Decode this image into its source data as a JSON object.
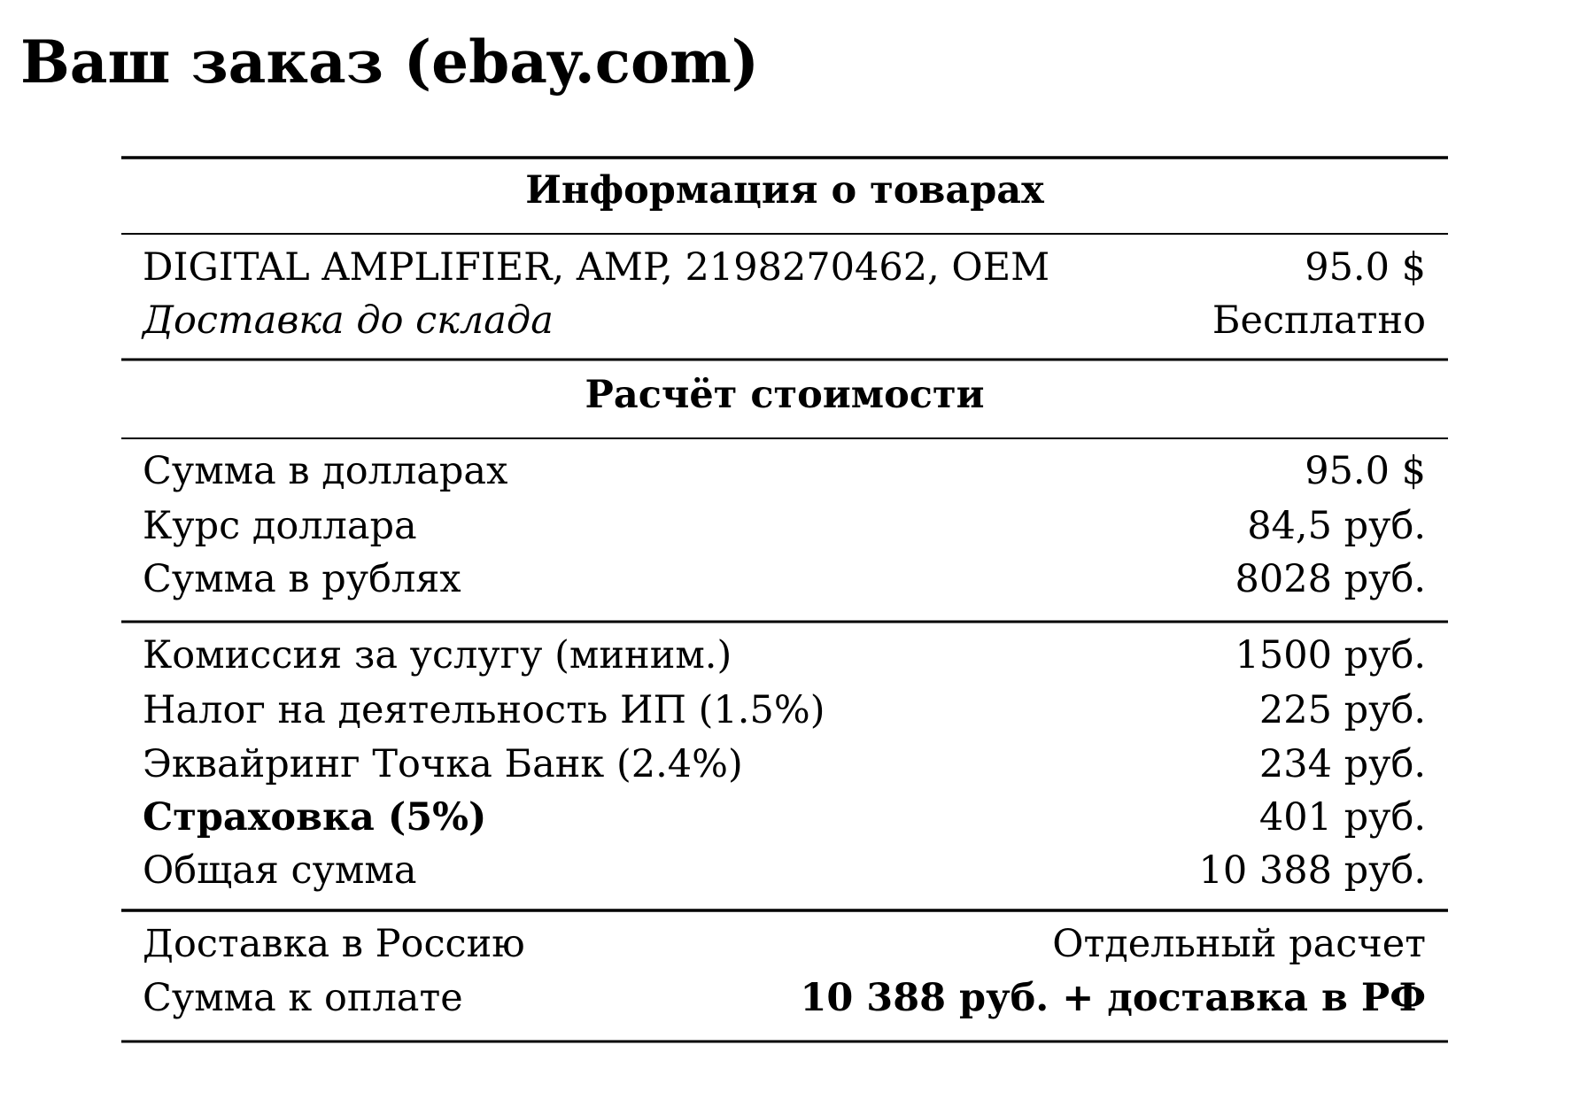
{
  "title": "Ваш заказ (ebay.com)",
  "items": {
    "header": "Информация о товарах",
    "rows": [
      {
        "label": "DIGITAL AMPLIFIER, AMP, 2198270462, OEM",
        "value": "95.0 $"
      },
      {
        "label": "Доставка до склада",
        "value": "Бесплатно"
      }
    ]
  },
  "calculation": {
    "header": "Расчёт стоимости",
    "conversion": [
      {
        "label": "Сумма в долларах",
        "value": "95.0 $"
      },
      {
        "label": "Курс доллара",
        "value": "84,5 руб."
      },
      {
        "label": "Сумма в рублях",
        "value": "8028 руб."
      }
    ],
    "fees": [
      {
        "label": "Комиссия за услугу (миним.)",
        "value": "1500 руб."
      },
      {
        "label": "Налог на деятельность ИП (1.5%)",
        "value": "225 руб."
      },
      {
        "label": "Эквайринг Точка Банк (2.4%)",
        "value": "234 руб."
      },
      {
        "label": "Страховка (5%)",
        "value": "401 руб."
      },
      {
        "label": "Общая сумма",
        "value": "10 388 руб."
      }
    ],
    "final": [
      {
        "label": "Доставка в Россию",
        "value": "Отдельный расчет"
      },
      {
        "label": "Сумма к оплате",
        "value": "10 388 руб. + доставка в РФ"
      }
    ]
  }
}
